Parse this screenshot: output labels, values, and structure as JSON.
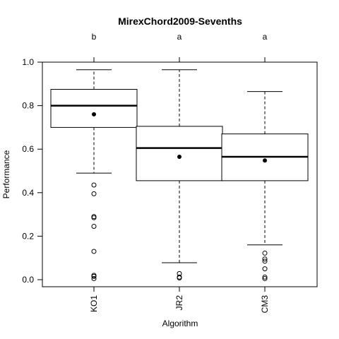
{
  "chart_data": {
    "type": "boxplot",
    "title": "MirexChord2009-Sevenths",
    "xlabel": "Algorithm",
    "ylabel": "Performance",
    "ylim": [
      -0.04,
      1.0
    ],
    "yticks": [
      "0.0",
      "0.2",
      "0.4",
      "0.6",
      "0.8",
      "1.0"
    ],
    "grid": false,
    "categories": [
      "KO1",
      "JR2",
      "CM3"
    ],
    "group_letters": [
      "b",
      "a",
      "a"
    ],
    "boxes": [
      {
        "name": "KO1",
        "whisker_low": 0.49,
        "q1": 0.7,
        "median": 0.8,
        "q3": 0.875,
        "whisker_high": 0.965,
        "mean": 0.76,
        "outliers": [
          0.435,
          0.395,
          0.29,
          0.285,
          0.245,
          0.13,
          0.02,
          0.015,
          0.005
        ]
      },
      {
        "name": "JR2",
        "whisker_low": 0.078,
        "q1": 0.455,
        "median": 0.605,
        "q3": 0.705,
        "whisker_high": 0.965,
        "mean": 0.565,
        "outliers": [
          0.028,
          0.012,
          0.008
        ]
      },
      {
        "name": "CM3",
        "whisker_low": 0.16,
        "q1": 0.455,
        "median": 0.565,
        "q3": 0.67,
        "whisker_high": 0.865,
        "mean": 0.548,
        "outliers": [
          0.122,
          0.095,
          0.085,
          0.05,
          0.012,
          0.005
        ]
      }
    ]
  }
}
